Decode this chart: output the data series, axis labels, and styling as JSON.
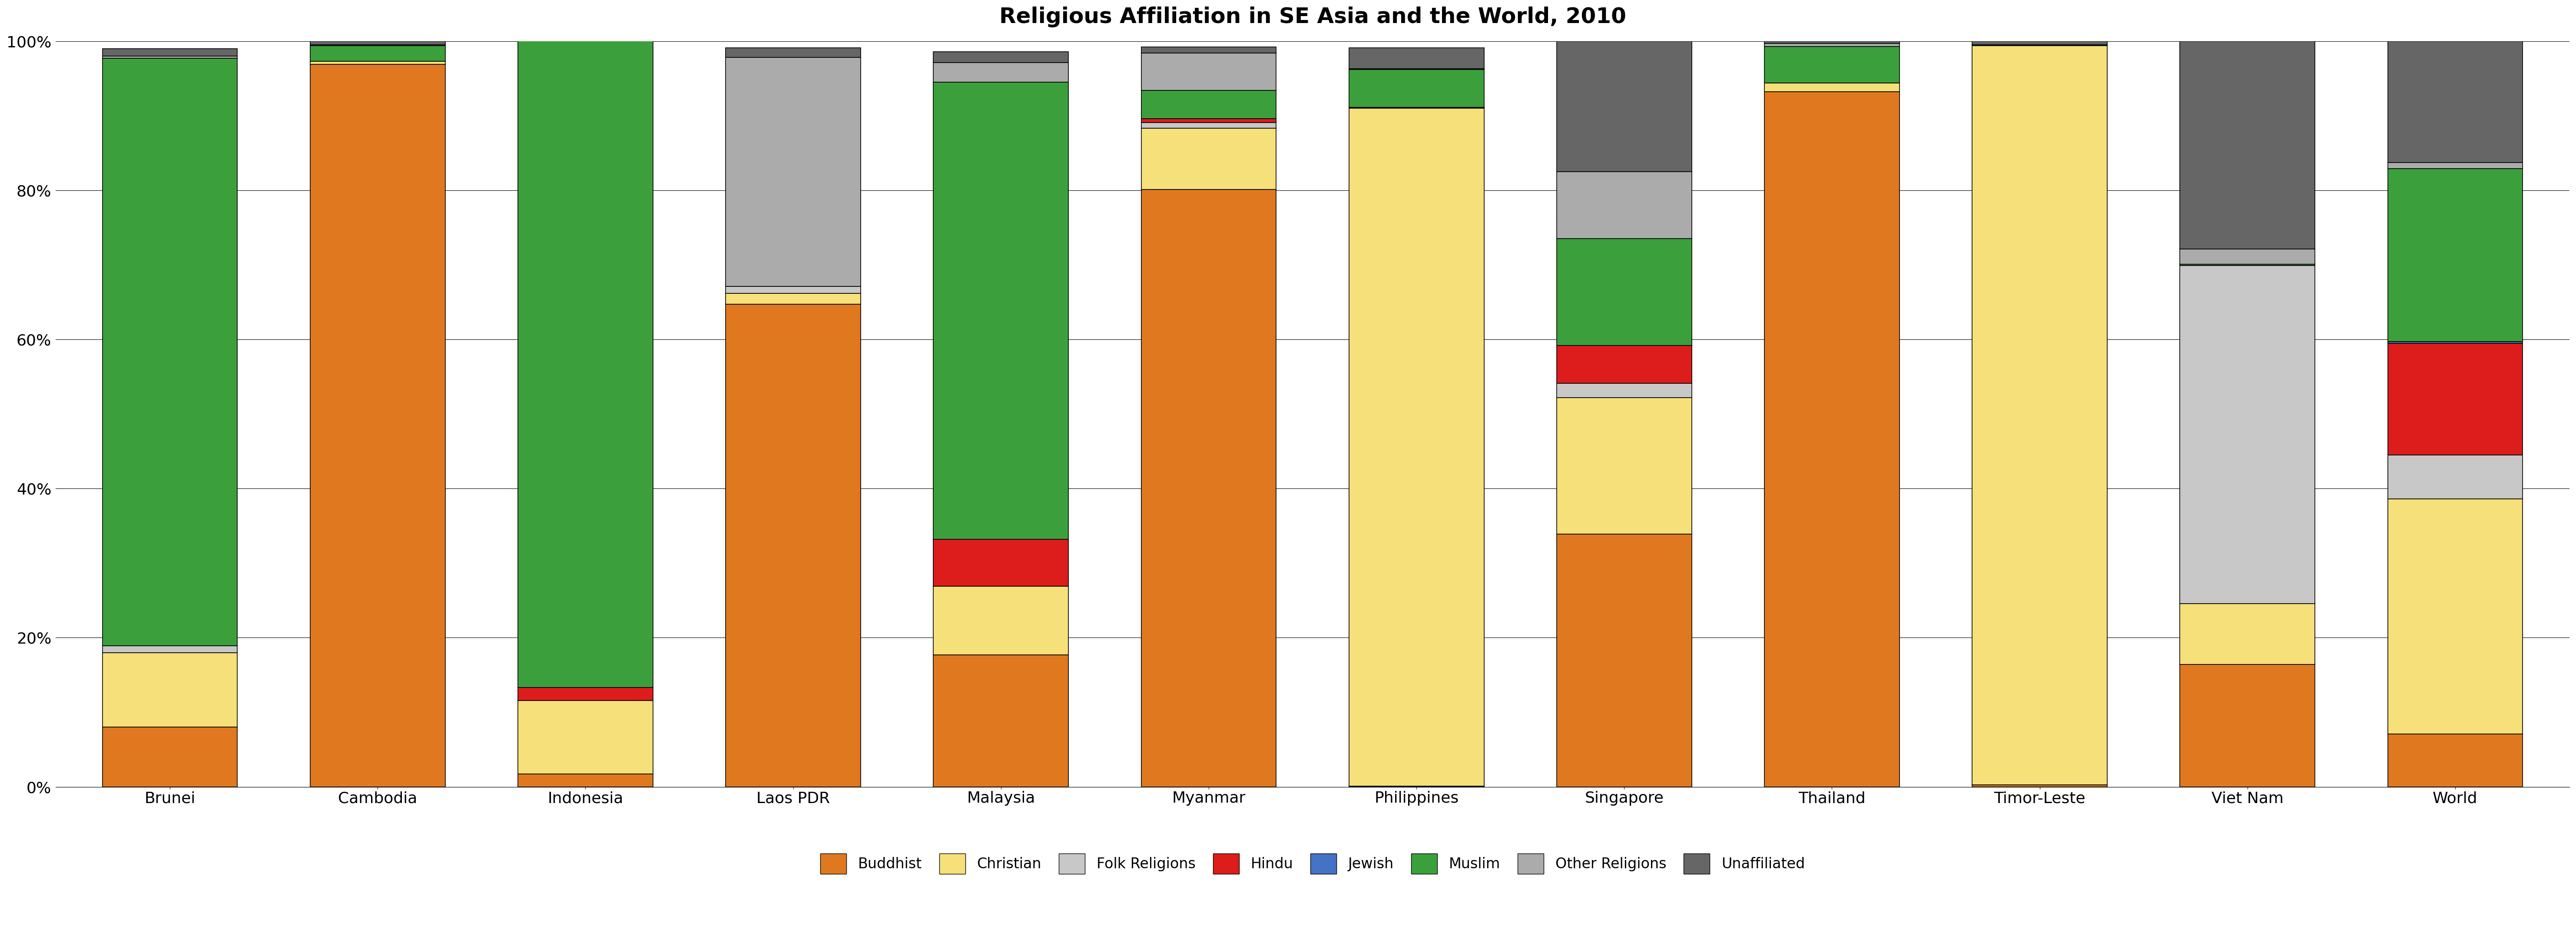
{
  "title": "Religious Affiliation in SE Asia and the World, 2010",
  "categories": [
    "Brunei",
    "Cambodia",
    "Indonesia",
    "Laos PDR",
    "Malaysia",
    "Myanmar",
    "Philippines",
    "Singapore",
    "Thailand",
    "Timor-Leste",
    "Viet Nam",
    "World"
  ],
  "religions": [
    "Buddhist",
    "Christian",
    "Folk Religions",
    "Hindu",
    "Jewish",
    "Muslim",
    "Other Religions",
    "Unaffiliated"
  ],
  "colors": {
    "Buddhist": "#E07820",
    "Christian": "#F5E07A",
    "Folk Religions": "#C8C8C8",
    "Hindu": "#DD1C1C",
    "Jewish": "#4472C4",
    "Muslim": "#3BA03B",
    "Other Religions": "#ABABAB",
    "Unaffiliated": "#666666"
  },
  "data": {
    "Buddhist": [
      8.0,
      96.9,
      1.7,
      64.7,
      17.7,
      80.1,
      0.1,
      33.9,
      93.2,
      0.3,
      16.4,
      7.1
    ],
    "Christian": [
      10.0,
      0.4,
      9.9,
      1.5,
      9.2,
      8.2,
      90.9,
      18.3,
      1.2,
      99.1,
      8.2,
      31.5
    ],
    "Folk Religions": [
      0.9,
      0.0,
      0.0,
      0.9,
      0.0,
      0.8,
      0.1,
      1.9,
      0.0,
      0.0,
      45.3,
      5.9
    ],
    "Hindu": [
      0.0,
      0.0,
      1.7,
      0.0,
      6.3,
      0.5,
      0.0,
      5.1,
      0.0,
      0.0,
      0.0,
      15.0
    ],
    "Jewish": [
      0.0,
      0.0,
      0.0,
      0.0,
      0.0,
      0.0,
      0.0,
      0.0,
      0.0,
      0.0,
      0.0,
      0.2
    ],
    "Muslim": [
      78.8,
      2.1,
      87.2,
      0.0,
      61.3,
      3.8,
      5.1,
      14.3,
      4.9,
      0.1,
      0.2,
      23.2
    ],
    "Other Religions": [
      0.3,
      0.1,
      0.0,
      30.7,
      2.6,
      5.0,
      0.1,
      9.0,
      0.4,
      0.0,
      2.0,
      0.8
    ],
    "Unaffiliated": [
      1.0,
      0.5,
      0.0,
      1.3,
      1.5,
      0.8,
      2.8,
      17.5,
      0.3,
      0.5,
      27.9,
      16.3
    ]
  },
  "ylim": [
    0,
    100
  ],
  "title_fontsize": 36,
  "tick_fontsize": 26,
  "legend_fontsize": 24,
  "bar_width": 0.65
}
